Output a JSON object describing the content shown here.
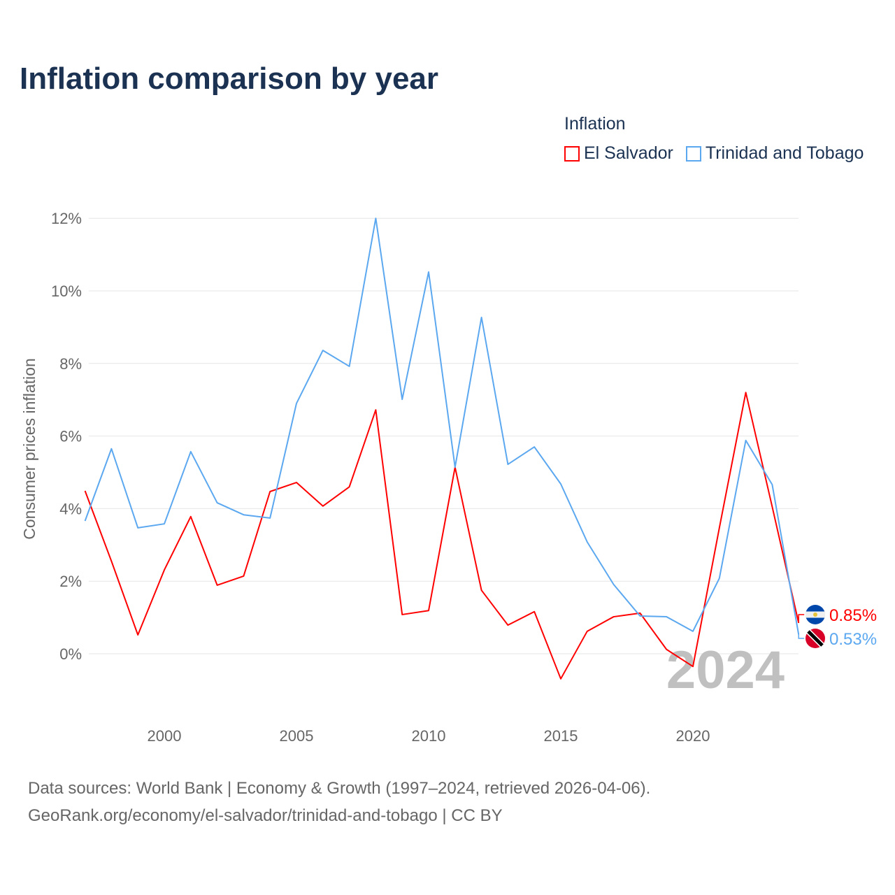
{
  "title": "Inflation comparison by year",
  "legend": {
    "title": "Inflation",
    "items": [
      {
        "label": "El Salvador",
        "color": "#ff0000"
      },
      {
        "label": "Trinidad and Tobago",
        "color": "#5ca8f0"
      }
    ]
  },
  "source": {
    "line1": "Data sources: World Bank | Economy & Growth (1997–2024, retrieved 2026-04-06).",
    "line2": "GeoRank.org/economy/el-salvador/trinidad-and-tobago | CC BY"
  },
  "chart_data": {
    "type": "line",
    "title": "Inflation comparison by year",
    "xlabel": "",
    "ylabel": "Consumer prices inflation",
    "xlim": [
      1997,
      2024
    ],
    "ylim": [
      -1.5,
      12.5
    ],
    "x_ticks": [
      2000,
      2005,
      2010,
      2015,
      2020
    ],
    "y_ticks": [
      {
        "v": 0,
        "label": "0%"
      },
      {
        "v": 2,
        "label": "2%"
      },
      {
        "v": 4,
        "label": "4%"
      },
      {
        "v": 6,
        "label": "6%"
      },
      {
        "v": 8,
        "label": "8%"
      },
      {
        "v": 10,
        "label": "10%"
      },
      {
        "v": 12,
        "label": "12%"
      }
    ],
    "grid": true,
    "legend_position": "top-right",
    "year_watermark": "2024",
    "x": [
      1997,
      1998,
      1999,
      2000,
      2001,
      2002,
      2003,
      2004,
      2005,
      2006,
      2007,
      2008,
      2009,
      2010,
      2011,
      2012,
      2013,
      2014,
      2015,
      2016,
      2017,
      2018,
      2019,
      2020,
      2021,
      2022,
      2023,
      2024
    ],
    "series": [
      {
        "name": "El Salvador",
        "color": "#ff0000",
        "end_label": "0.85%",
        "values": [
          4.49,
          2.55,
          0.52,
          2.31,
          3.78,
          1.89,
          2.14,
          4.47,
          4.72,
          4.07,
          4.6,
          6.72,
          1.08,
          1.19,
          5.14,
          1.75,
          0.79,
          1.16,
          -0.69,
          0.62,
          1.02,
          1.12,
          0.12,
          -0.35,
          3.47,
          7.2,
          4.05,
          0.85
        ]
      },
      {
        "name": "Trinidad and Tobago",
        "color": "#5ca8f0",
        "end_label": "0.53%",
        "values": [
          3.66,
          5.65,
          3.47,
          3.58,
          5.57,
          4.16,
          3.83,
          3.74,
          6.9,
          8.36,
          7.92,
          12.0,
          7.01,
          10.52,
          5.14,
          9.27,
          5.22,
          5.7,
          4.68,
          3.08,
          1.91,
          1.04,
          1.02,
          0.62,
          2.08,
          5.88,
          4.66,
          0.53
        ]
      }
    ]
  }
}
